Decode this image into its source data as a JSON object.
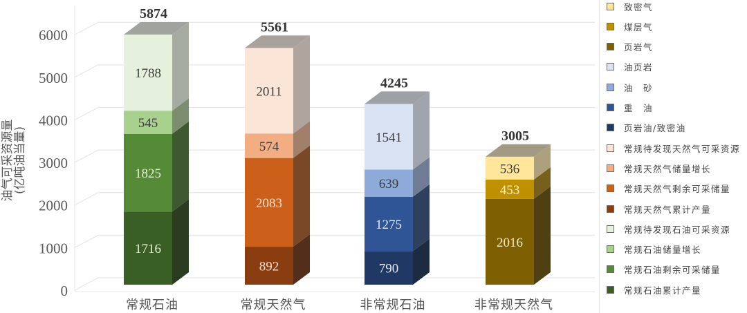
{
  "chart_data": {
    "type": "bar",
    "stacked": true,
    "style": "3d",
    "title": "",
    "xlabel": "",
    "ylabel": "油气可采资源量 (亿吨油当量)",
    "ylabel_lines": [
      "油气可采资源量",
      "(亿吨油当量)"
    ],
    "ylim": [
      0,
      6000
    ],
    "yticks": [
      0,
      1000,
      2000,
      3000,
      4000,
      5000,
      6000
    ],
    "grid": true,
    "legend_position": "right",
    "categories": [
      "常规石油",
      "常规天然气",
      "非常规石油",
      "非常规天然气"
    ],
    "totals": [
      5874,
      5561,
      4245,
      3005
    ],
    "groups": [
      {
        "category": "常规石油",
        "total": 5874,
        "segments": [
          {
            "name": "常规石油累计产量",
            "value": 1716,
            "color": "#3a5f24",
            "label_color": "#e8f0dc"
          },
          {
            "name": "常规石油剩余可采储量",
            "value": 1825,
            "color": "#558a36",
            "label_color": "#e8f0dc"
          },
          {
            "name": "常规石油储量增长",
            "value": 545,
            "color": "#a9d18e",
            "label_color": "#3c3c3c"
          },
          {
            "name": "常规待发现石油可采资源",
            "value": 1788,
            "color": "#e5f1dc",
            "label_color": "#3c3c3c"
          }
        ]
      },
      {
        "category": "常规天然气",
        "total": 5561,
        "segments": [
          {
            "name": "常规天然气累计产量",
            "value": 892,
            "color": "#8b3d12",
            "label_color": "#f5e2d2"
          },
          {
            "name": "常规天然气剩余可采储量",
            "value": 2083,
            "color": "#cc5f1a",
            "label_color": "#f8e4d4"
          },
          {
            "name": "常规天然气储量增长",
            "value": 574,
            "color": "#f3ad83",
            "label_color": "#3c3c3c"
          },
          {
            "name": "常规待发现天然气可采资源",
            "value": 2011,
            "color": "#fbe5d6",
            "label_color": "#3c3c3c"
          }
        ]
      },
      {
        "category": "非常规石油",
        "total": 4245,
        "segments": [
          {
            "name": "页岩油/致密油",
            "value": 790,
            "color": "#1f3864",
            "label_color": "#e4e9f4"
          },
          {
            "name": "重 油",
            "value": 1275,
            "color": "#2f5597",
            "label_color": "#e4e9f4"
          },
          {
            "name": "油 砂",
            "value": 639,
            "color": "#8eaadb",
            "label_color": "#3c3c3c"
          },
          {
            "name": "油页岩",
            "value": 1541,
            "color": "#dae3f3",
            "label_color": "#3c3c3c"
          }
        ]
      },
      {
        "category": "非常规天然气",
        "total": 3005,
        "segments": [
          {
            "name": "页岩气",
            "value": 2016,
            "color": "#7f6000",
            "label_color": "#f5ecc8"
          },
          {
            "name": "煤层气",
            "value": 453,
            "color": "#bf9000",
            "label_color": "#fff2cc"
          },
          {
            "name": "致密气",
            "value": 536,
            "color": "#ffe699",
            "label_color": "#3c3c3c"
          }
        ]
      }
    ],
    "legend": [
      {
        "label": "致密气",
        "color": "#ffe699"
      },
      {
        "label": "煤层气",
        "color": "#bf9000"
      },
      {
        "label": "页岩气",
        "color": "#7f6000"
      },
      {
        "label": "油页岩",
        "color": "#dae3f3"
      },
      {
        "label": "油　砂",
        "color": "#8eaadb"
      },
      {
        "label": "重　油",
        "color": "#2f5597"
      },
      {
        "label": "页岩油/致密油",
        "color": "#1f3864"
      },
      {
        "label": "常规待发现天然气可采资源",
        "color": "#fbe5d6"
      },
      {
        "label": "常规天然气储量增长",
        "color": "#f3ad83"
      },
      {
        "label": "常规天然气剩余可采储量",
        "color": "#cc5f1a"
      },
      {
        "label": "常规天然气累计产量",
        "color": "#8b3d12"
      },
      {
        "label": "常规待发现石油可采资源",
        "color": "#e5f1dc"
      },
      {
        "label": "常规石油储量增长",
        "color": "#a9d18e"
      },
      {
        "label": "常规石油剩余可采储量",
        "color": "#558a36"
      },
      {
        "label": "常规石油累计产量",
        "color": "#3a5f24"
      }
    ]
  }
}
